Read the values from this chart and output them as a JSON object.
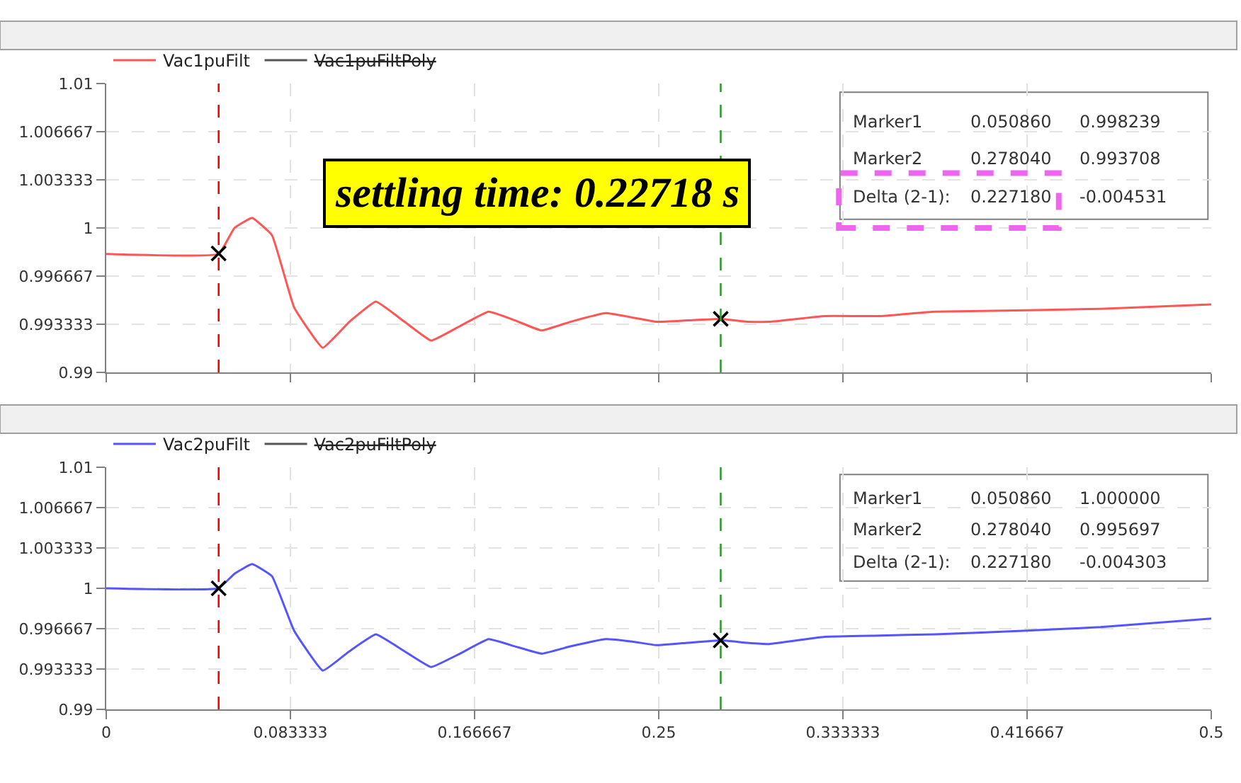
{
  "chart_data": [
    {
      "type": "line",
      "xlim": [
        0,
        0.5
      ],
      "ylim": [
        0.99,
        1.01
      ],
      "xticks": [
        {
          "value": 0,
          "label": null
        },
        {
          "value": 0.083333,
          "label": null
        },
        {
          "value": 0.166667,
          "label": null
        },
        {
          "value": 0.25,
          "label": null
        },
        {
          "value": 0.333333,
          "label": null
        },
        {
          "value": 0.416667,
          "label": null
        },
        {
          "value": 0.5,
          "label": null
        }
      ],
      "yticks": [
        0.99,
        {
          "value": 0.993333,
          "label": "0.993333"
        },
        {
          "value": 0.996667,
          "label": "0.996667"
        },
        1,
        {
          "value": 1.003333,
          "label": "1.003333"
        },
        {
          "value": 1.006667,
          "label": "1.006667"
        },
        1.01
      ],
      "tick_labels": "y",
      "grid": true,
      "legend": "top left",
      "series": [
        {
          "name": "Vac1puFilt",
          "color": "#ff5555",
          "x": [
            0,
            0.05086,
            0.058,
            0.066,
            0.075,
            0.085,
            0.098,
            0.11,
            0.122,
            0.135,
            0.147,
            0.16,
            0.173,
            0.185,
            0.197,
            0.21,
            0.226,
            0.238,
            0.249,
            0.263,
            0.27804,
            0.29,
            0.3,
            0.325,
            0.35,
            0.375,
            0.4167,
            0.45,
            0.5
          ],
          "values": [
            0.9982,
            0.9982,
            1.0,
            1.0007,
            0.9995,
            0.9945,
            0.9917,
            0.9935,
            0.9949,
            0.9935,
            0.9922,
            0.9932,
            0.9942,
            0.9936,
            0.9929,
            0.9935,
            0.9941,
            0.9938,
            0.9935,
            0.9936,
            0.9937,
            0.9935,
            0.9935,
            0.9939,
            0.9939,
            0.9942,
            0.9943,
            0.9944,
            0.9947
          ]
        },
        {
          "name": "Vac1puFiltPoly",
          "color": "#555555"
        },
        {
          "type": "scatter",
          "marker": "cross",
          "color": "#000000",
          "x": [
            0.05086,
            0.27804
          ],
          "values": [
            0.998239,
            0.993708
          ]
        }
      ],
      "ref_lines": [
        {
          "axis": "x",
          "value": 0.05086,
          "color": "#ff0000",
          "line_style": "dashed"
        },
        {
          "axis": "x",
          "value": 0.27804,
          "color": "#339933",
          "line_style": "dashed"
        }
      ],
      "annotations": [
        "settling time: 0.22718 s",
        "Marker1",
        "0.050860",
        "0.998239",
        "Marker2",
        "0.278040",
        "0.993708",
        "Delta (2-1):",
        "0.227180",
        "-0.004531"
      ]
    },
    {
      "type": "line",
      "xlim": [
        0,
        0.5
      ],
      "ylim": [
        0.99,
        1.01
      ],
      "xticks": [
        0,
        {
          "value": 0.083333,
          "label": "0.083333"
        },
        {
          "value": 0.166667,
          "label": "0.166667"
        },
        0.25,
        {
          "value": 0.333333,
          "label": "0.333333"
        },
        {
          "value": 0.416667,
          "label": "0.416667"
        },
        0.5
      ],
      "yticks": [
        0.99,
        {
          "value": 0.993333,
          "label": "0.993333"
        },
        {
          "value": 0.996667,
          "label": "0.996667"
        },
        1,
        {
          "value": 1.003333,
          "label": "1.003333"
        },
        {
          "value": 1.006667,
          "label": "1.006667"
        },
        1.01
      ],
      "grid": true,
      "legend": "top left",
      "series": [
        {
          "name": "Vac2puFilt",
          "color": "#5555ff",
          "x": [
            0,
            0.05086,
            0.058,
            0.066,
            0.075,
            0.085,
            0.098,
            0.11,
            0.122,
            0.135,
            0.147,
            0.16,
            0.173,
            0.185,
            0.197,
            0.21,
            0.226,
            0.238,
            0.249,
            0.263,
            0.27804,
            0.29,
            0.3,
            0.325,
            0.35,
            0.375,
            0.4167,
            0.45,
            0.5
          ],
          "values": [
            1.0,
            1.0,
            1.0012,
            1.002,
            1.001,
            0.9965,
            0.9932,
            0.9948,
            0.9962,
            0.9948,
            0.9935,
            0.9946,
            0.9958,
            0.9952,
            0.9946,
            0.9952,
            0.9958,
            0.9956,
            0.9953,
            0.9955,
            0.9957,
            0.9955,
            0.9954,
            0.996,
            0.9961,
            0.9962,
            0.9965,
            0.9968,
            0.9975
          ]
        },
        {
          "name": "Vac2puFiltPoly",
          "color": "#555555"
        },
        {
          "type": "scatter",
          "marker": "cross",
          "color": "#000000",
          "x": [
            0.05086,
            0.27804
          ],
          "values": [
            1.0,
            0.995697
          ]
        }
      ],
      "ref_lines": [
        {
          "axis": "x",
          "value": 0.05086,
          "color": "#ff0000",
          "line_style": "dashed"
        },
        {
          "axis": "x",
          "value": 0.27804,
          "color": "#339933",
          "line_style": "dashed"
        }
      ],
      "annotations": [
        "Marker1",
        "0.050860",
        "1.000000",
        "Marker2",
        "0.278040",
        "0.995697",
        "Delta (2-1):",
        "0.227180",
        "-0.004303"
      ]
    }
  ]
}
